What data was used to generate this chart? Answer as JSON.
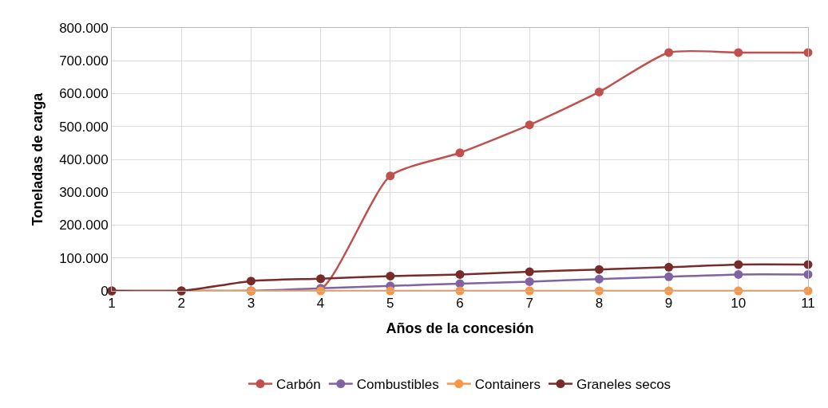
{
  "chart_data": {
    "type": "line",
    "xlabel": "Años de la concesión",
    "ylabel": "Toneladas de carga",
    "x": [
      1,
      2,
      3,
      4,
      5,
      6,
      7,
      8,
      9,
      10,
      11
    ],
    "series": [
      {
        "name": "Carbón",
        "color": "#c0504d",
        "values": [
          0,
          0,
          0,
          5000,
          350000,
          420000,
          505000,
          605000,
          725000,
          725000,
          725000
        ]
      },
      {
        "name": "Combustibles",
        "color": "#8064a2",
        "values": [
          0,
          0,
          0,
          8000,
          15000,
          22000,
          28000,
          36000,
          43000,
          50000,
          50000
        ]
      },
      {
        "name": "Containers",
        "color": "#f79646",
        "values": [
          0,
          0,
          0,
          0,
          0,
          0,
          0,
          0,
          0,
          0,
          0
        ]
      },
      {
        "name": "Graneles secos",
        "color": "#772c2a",
        "values": [
          0,
          0,
          30000,
          37000,
          45000,
          50000,
          58000,
          65000,
          72000,
          80000,
          80000
        ]
      }
    ],
    "xlim": [
      1,
      11
    ],
    "xticks": [
      1,
      2,
      3,
      4,
      5,
      6,
      7,
      8,
      9,
      10,
      11
    ],
    "ylim": [
      0,
      800000
    ],
    "yticks": [
      {
        "value": 0,
        "label": "0"
      },
      {
        "value": 100000,
        "label": "100.000"
      },
      {
        "value": 200000,
        "label": "200.000"
      },
      {
        "value": 300000,
        "label": "300.000"
      },
      {
        "value": 400000,
        "label": "400.000"
      },
      {
        "value": 500000,
        "label": "500.000"
      },
      {
        "value": 600000,
        "label": "600.000"
      },
      {
        "value": 700000,
        "label": "700.000"
      },
      {
        "value": 800000,
        "label": "800.000"
      }
    ],
    "grid": true,
    "legend": "bottom",
    "marker": "circle",
    "line_style": "solid"
  }
}
